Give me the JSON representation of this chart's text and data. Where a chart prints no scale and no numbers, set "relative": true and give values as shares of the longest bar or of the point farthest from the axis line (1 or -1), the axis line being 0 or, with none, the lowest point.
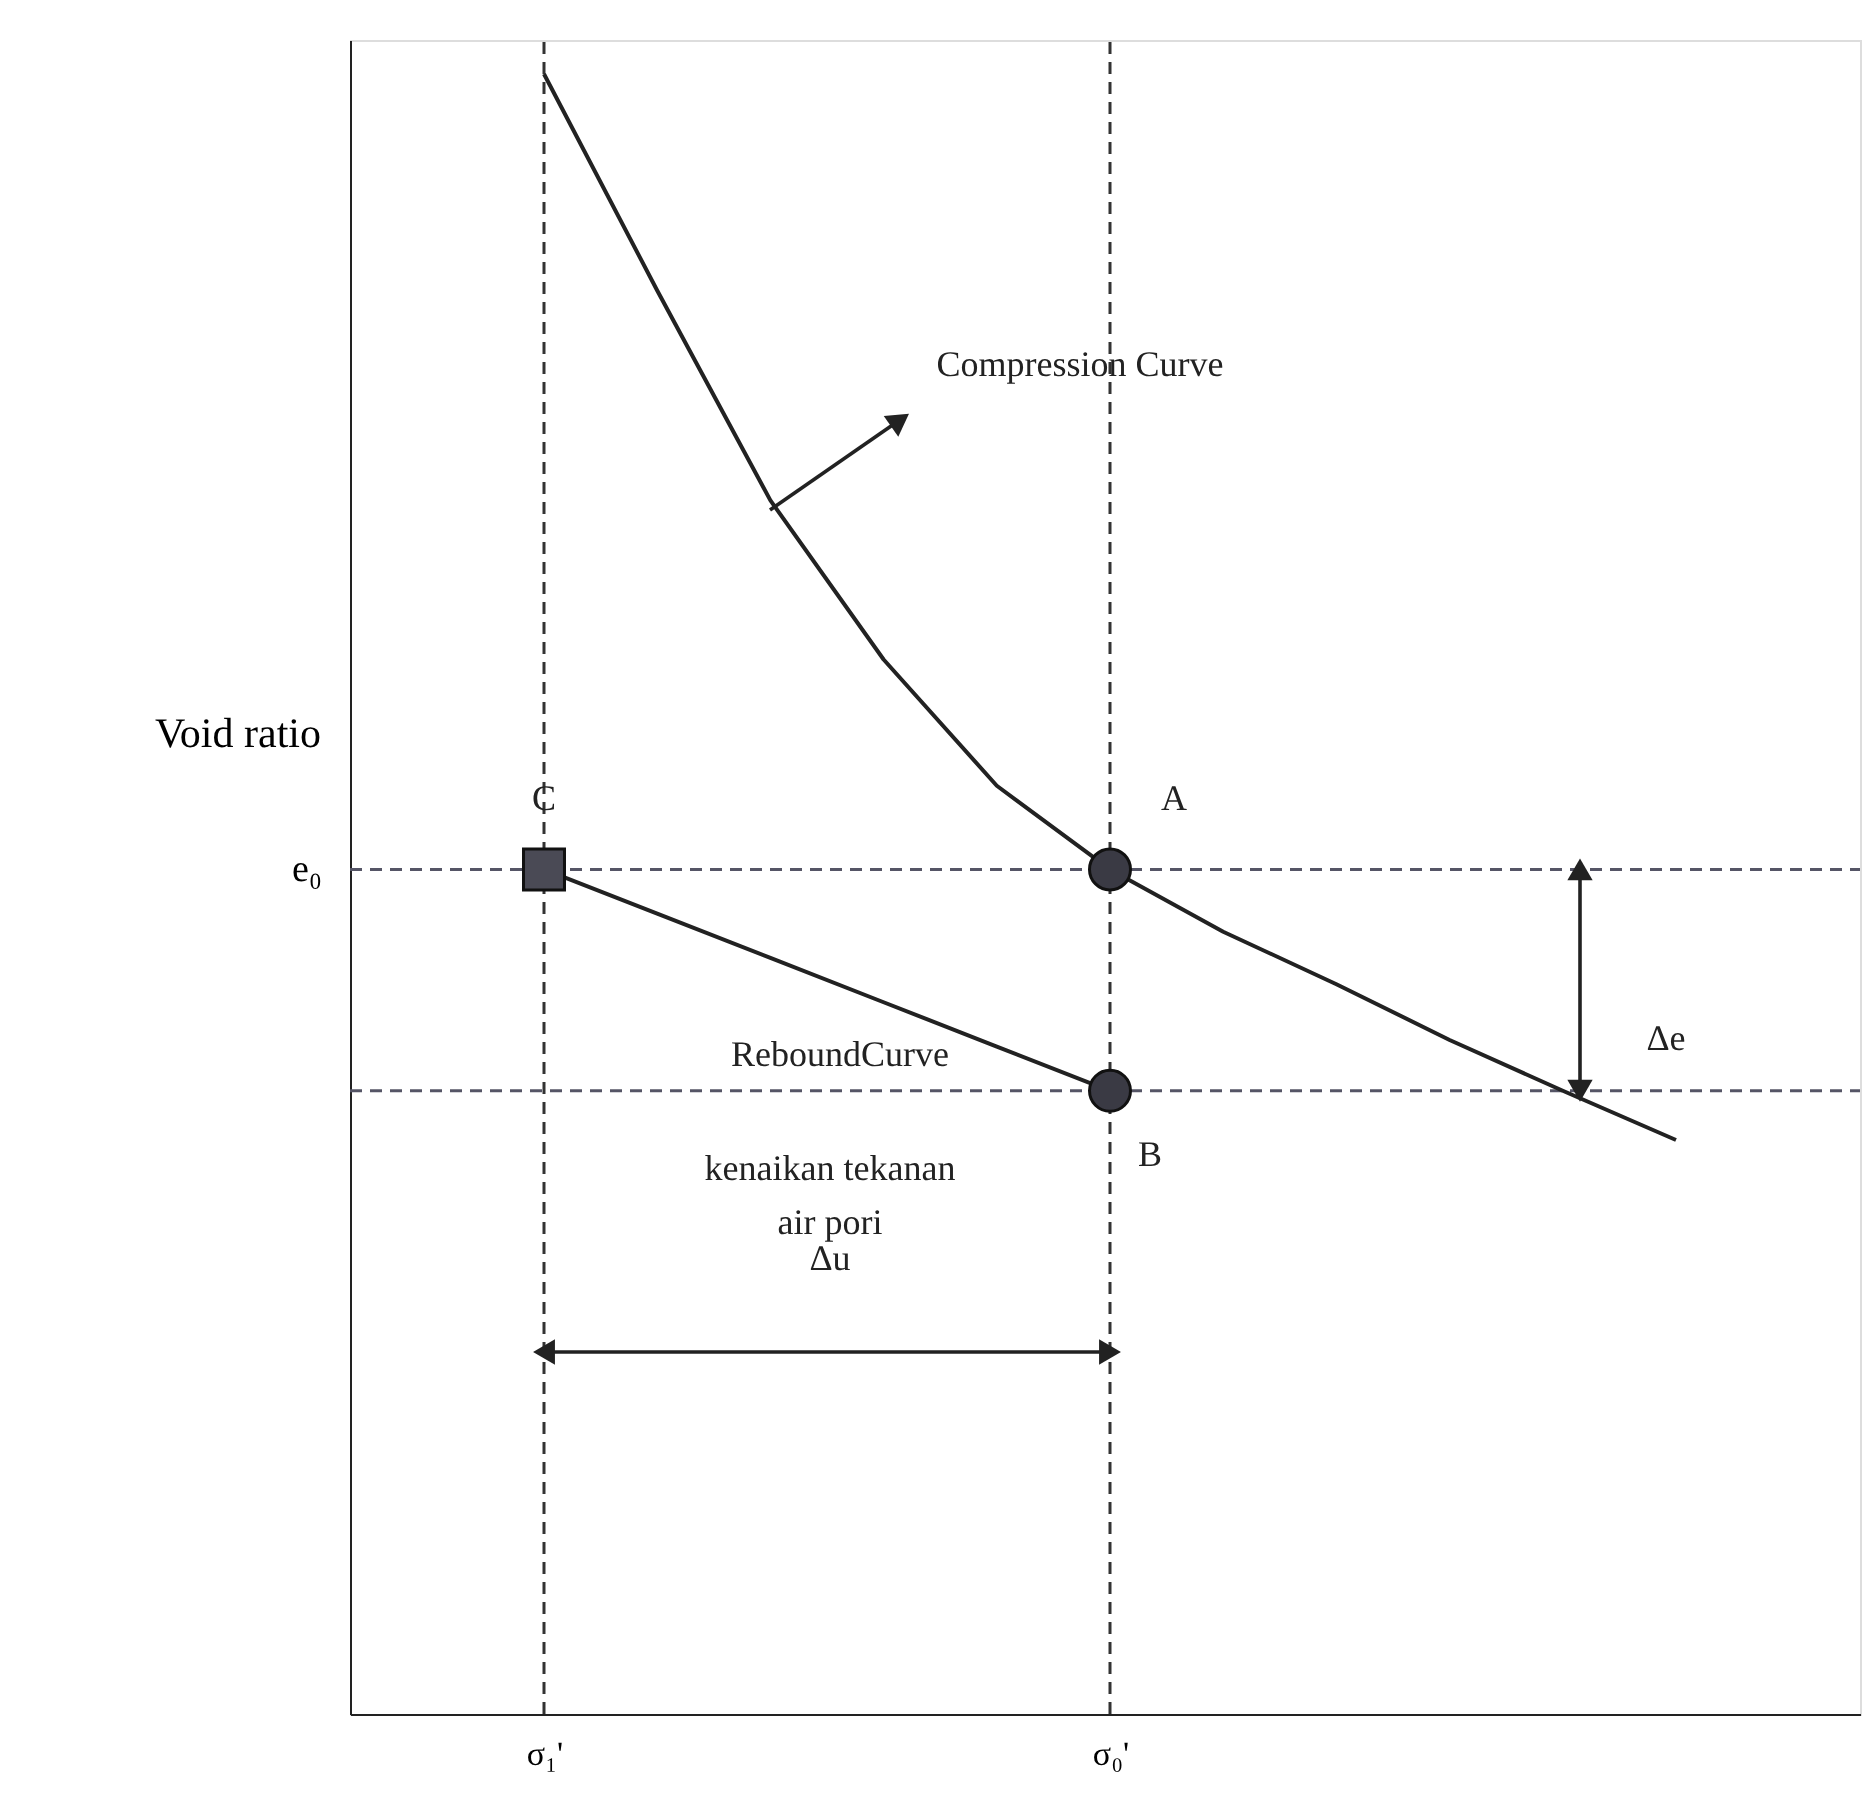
{
  "chart_data": {
    "type": "line",
    "relative": true,
    "ylabel": "Void ratio",
    "categories": [
      "σ₁'",
      null,
      null,
      null,
      null,
      "σ₀'",
      null,
      null,
      null,
      null,
      null
    ],
    "series": [
      {
        "type": "line",
        "color": "#222222",
        "line_style": "solid",
        "marker": "none",
        "values": [
          1.0,
          0.868,
          0.74,
          0.643,
          0.566,
          0.515,
          0.477,
          0.445,
          0.411,
          0.38,
          0.35
        ]
      },
      {
        "type": "line",
        "color": "#222222",
        "line_style": "solid",
        "marker": "none",
        "values": [
          0.515,
          0.488,
          0.461,
          0.434,
          0.407,
          0.38,
          null,
          null,
          null,
          null,
          null
        ]
      },
      {
        "type": "scatter",
        "color": "#3a3a44",
        "marker": "circle",
        "values": [
          null,
          null,
          null,
          null,
          null,
          0.515,
          null,
          null,
          null,
          null,
          null
        ]
      },
      {
        "type": "scatter",
        "color": "#3a3a44",
        "marker": "circle",
        "values": [
          null,
          null,
          null,
          null,
          null,
          0.38,
          null,
          null,
          null,
          null,
          null
        ]
      },
      {
        "type": "scatter",
        "color": "#4a4a55",
        "marker": "square",
        "values": [
          0.515,
          null,
          null,
          null,
          null,
          null,
          null,
          null,
          null,
          null,
          null
        ]
      }
    ],
    "ref_lines": [
      {
        "axis": "y",
        "value": 0.515,
        "label": "e₀",
        "color": "#555566",
        "line_style": "dashed"
      },
      {
        "axis": "y",
        "value": 0.38,
        "color": "#555566",
        "line_style": "dashed"
      },
      {
        "axis": "x",
        "value": "σ₁'",
        "color": "#333333",
        "line_style": "dashed"
      },
      {
        "axis": "x",
        "value": "σ₀'",
        "color": "#333333",
        "line_style": "dashed"
      }
    ],
    "annotations": [
      "Compression Curve",
      "A",
      "B",
      "C",
      "ReboundCurve",
      "kenaikan tekanan",
      "air pori",
      "Δu",
      "Δe"
    ]
  }
}
